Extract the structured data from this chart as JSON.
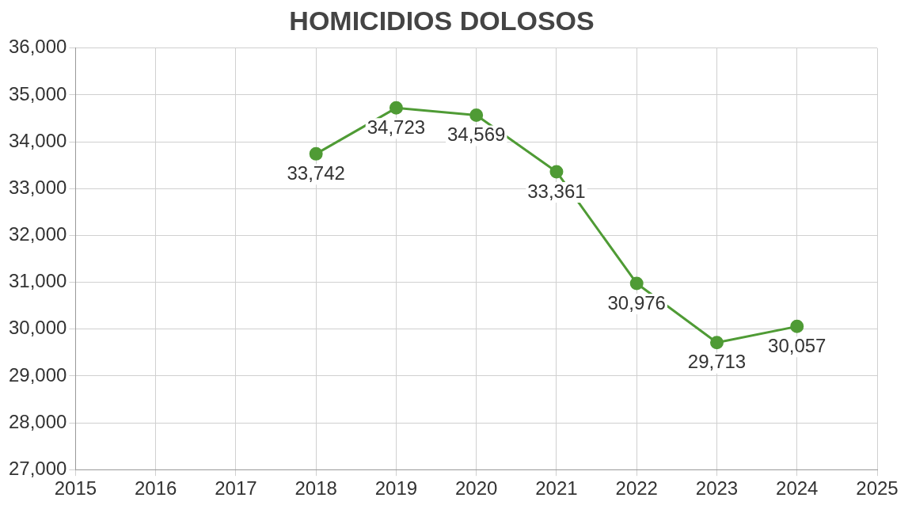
{
  "chart_data": {
    "type": "line",
    "title": "HOMICIDIOS DOLOSOS",
    "x": [
      2018,
      2019,
      2020,
      2021,
      2022,
      2023,
      2024
    ],
    "series": [
      {
        "color": "#4f9b35",
        "values": [
          33742,
          34723,
          34569,
          33361,
          30976,
          29713,
          30057
        ],
        "value_labels": [
          "33,742",
          "34,723",
          "34,569",
          "33,361",
          "30,976",
          "29,713",
          "30,057"
        ]
      }
    ],
    "xlim": [
      2015,
      2025
    ],
    "xticks": [
      2015,
      2016,
      2017,
      2018,
      2019,
      2020,
      2021,
      2022,
      2023,
      2024,
      2025
    ],
    "ylim": [
      27000,
      36000
    ],
    "yticks": [
      {
        "value": 27000,
        "label": "27,000"
      },
      {
        "value": 28000,
        "label": "28,000"
      },
      {
        "value": 29000,
        "label": "29,000"
      },
      {
        "value": 30000,
        "label": "30,000"
      },
      {
        "value": 31000,
        "label": "31,000"
      },
      {
        "value": 32000,
        "label": "32,000"
      },
      {
        "value": 33000,
        "label": "33,000"
      },
      {
        "value": 34000,
        "label": "34,000"
      },
      {
        "value": 35000,
        "label": "35,000"
      },
      {
        "value": 36000,
        "label": "36,000"
      }
    ],
    "grid": true,
    "marker": "circle",
    "line_style": "solid",
    "legend": false
  }
}
